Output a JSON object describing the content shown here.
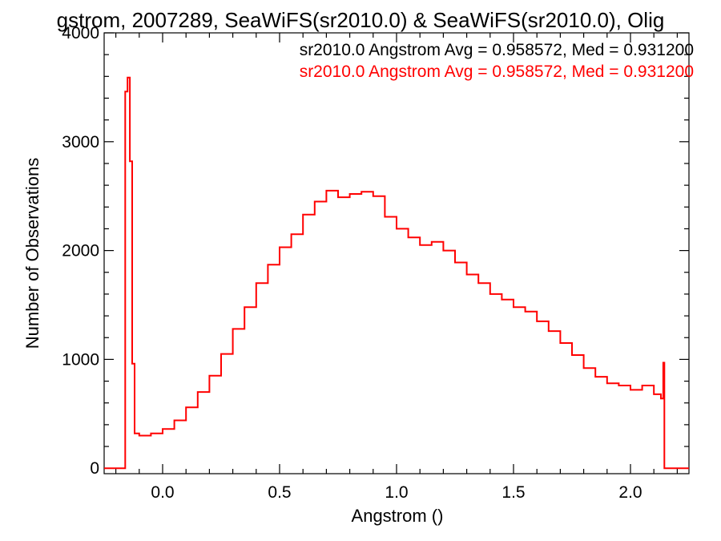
{
  "chart_data": {
    "type": "line",
    "title": "gstrom, 2007289, SeaWiFS(sr2010.0) & SeaWiFS(sr2010.0), Olig",
    "xlabel": "Angstrom ()",
    "ylabel": "Number of Observations",
    "xlim": [
      -0.25,
      2.25
    ],
    "ylim": [
      -50,
      4000
    ],
    "x_ticks": [
      0.0,
      0.5,
      1.0,
      1.5,
      2.0
    ],
    "x_tick_labels": [
      "0.0",
      "0.5",
      "1.0",
      "1.5",
      "2.0"
    ],
    "y_ticks": [
      0,
      1000,
      2000,
      3000,
      4000
    ],
    "y_tick_labels": [
      "0",
      "1000",
      "2000",
      "3000",
      "4000"
    ],
    "grid": false,
    "legend_placement": "top-right",
    "annotations": [
      {
        "text": "sr2010.0 Angstrom Avg = 0.958572, Med = 0.931200",
        "color": "#000000"
      },
      {
        "text": "sr2010.0 Angstrom Avg = 0.958572, Med = 0.931200",
        "color": "#ff0000"
      }
    ],
    "series": [
      {
        "color": "#ff0000",
        "style": "step",
        "points": [
          [
            -0.25,
            0
          ],
          [
            -0.17,
            0
          ],
          [
            -0.16,
            3460
          ],
          [
            -0.15,
            3590
          ],
          [
            -0.14,
            2820
          ],
          [
            -0.13,
            960
          ],
          [
            -0.12,
            320
          ],
          [
            -0.1,
            300
          ],
          [
            -0.05,
            320
          ],
          [
            0.0,
            360
          ],
          [
            0.05,
            440
          ],
          [
            0.1,
            560
          ],
          [
            0.15,
            700
          ],
          [
            0.2,
            850
          ],
          [
            0.25,
            1050
          ],
          [
            0.3,
            1280
          ],
          [
            0.35,
            1480
          ],
          [
            0.4,
            1700
          ],
          [
            0.45,
            1870
          ],
          [
            0.5,
            2030
          ],
          [
            0.55,
            2150
          ],
          [
            0.6,
            2330
          ],
          [
            0.65,
            2450
          ],
          [
            0.7,
            2550
          ],
          [
            0.75,
            2490
          ],
          [
            0.8,
            2520
          ],
          [
            0.85,
            2540
          ],
          [
            0.9,
            2500
          ],
          [
            0.95,
            2310
          ],
          [
            1.0,
            2200
          ],
          [
            1.05,
            2120
          ],
          [
            1.1,
            2050
          ],
          [
            1.15,
            2080
          ],
          [
            1.2,
            2000
          ],
          [
            1.25,
            1890
          ],
          [
            1.3,
            1780
          ],
          [
            1.35,
            1700
          ],
          [
            1.4,
            1600
          ],
          [
            1.45,
            1550
          ],
          [
            1.5,
            1480
          ],
          [
            1.55,
            1440
          ],
          [
            1.6,
            1350
          ],
          [
            1.65,
            1260
          ],
          [
            1.7,
            1150
          ],
          [
            1.75,
            1040
          ],
          [
            1.8,
            920
          ],
          [
            1.85,
            840
          ],
          [
            1.9,
            780
          ],
          [
            1.95,
            760
          ],
          [
            2.0,
            720
          ],
          [
            2.05,
            760
          ],
          [
            2.1,
            680
          ],
          [
            2.13,
            640
          ],
          [
            2.14,
            970
          ],
          [
            2.145,
            0
          ],
          [
            2.25,
            0
          ]
        ]
      }
    ]
  }
}
